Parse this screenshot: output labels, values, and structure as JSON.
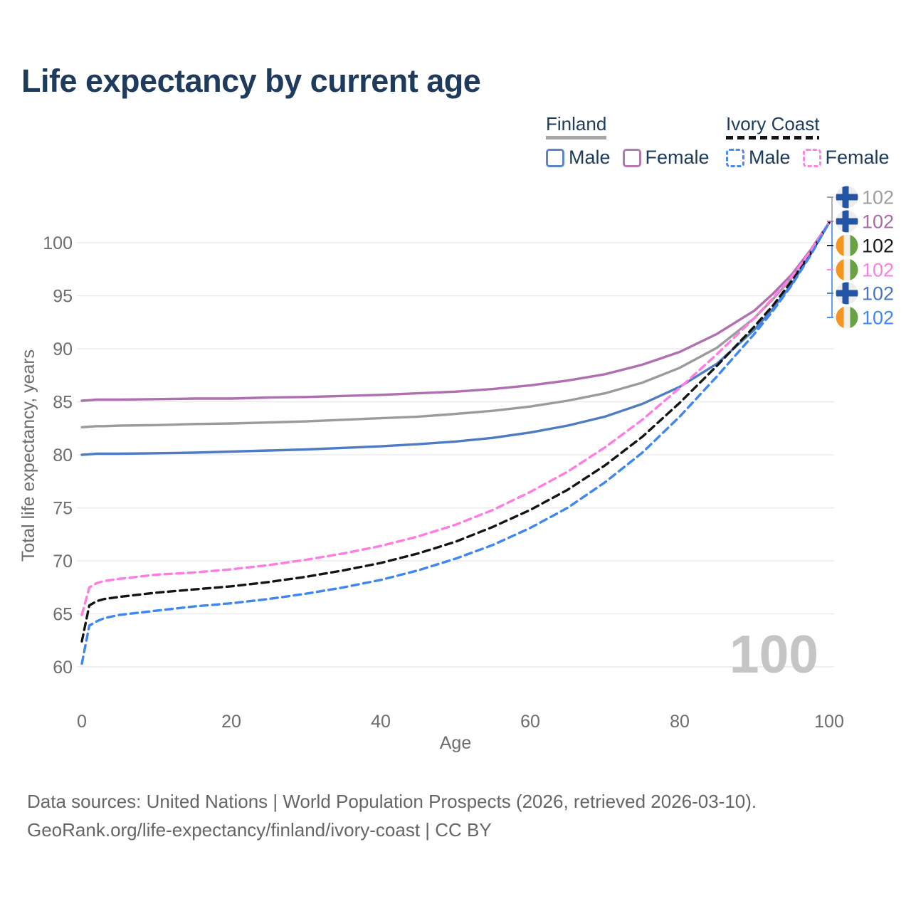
{
  "title": "Life expectancy by current age",
  "watermark": "100",
  "legend": {
    "groups": [
      {
        "label": "Finland",
        "underline": {
          "style": "solid",
          "color": "#a6a6a6"
        },
        "items": [
          {
            "label": "Male",
            "color": "#5b87c8",
            "dashed": false
          },
          {
            "label": "Female",
            "color": "#b379b3",
            "dashed": false
          }
        ]
      },
      {
        "label": "Ivory Coast",
        "underline": {
          "style": "dashed",
          "color": "#141414"
        },
        "items": [
          {
            "label": "Male",
            "color": "#4b89f0",
            "dashed": true
          },
          {
            "label": "Female",
            "color": "#ff85e4",
            "dashed": true
          }
        ]
      }
    ]
  },
  "footer": {
    "line1": "Data sources: United Nations | World Population Prospects (2026, retrieved 2026-03-10).",
    "line2": "GeoRank.org/life-expectancy/finland/ivory-coast | CC BY"
  },
  "chart_data": {
    "type": "line",
    "title": "Life expectancy by current age",
    "xlabel": "Age",
    "ylabel": "Total life expectancy, years",
    "x_ticks": [
      0,
      20,
      40,
      60,
      80,
      100
    ],
    "y_ticks": [
      60,
      65,
      70,
      75,
      80,
      85,
      90,
      95,
      100
    ],
    "xlim": [
      0,
      100
    ],
    "ylim": [
      58,
      103
    ],
    "grid": "horizontal",
    "legend_position": "top-right",
    "ages": [
      0,
      1,
      2,
      3,
      5,
      10,
      15,
      20,
      25,
      30,
      35,
      40,
      45,
      50,
      55,
      60,
      65,
      70,
      75,
      80,
      85,
      90,
      92.5,
      95,
      97.5,
      100
    ],
    "series": [
      {
        "id": "finland-total",
        "name": "Finland — Both sexes",
        "country": "Finland",
        "group": "total",
        "color": "#9b9b9b",
        "dashed": false,
        "flag": "finland",
        "row": 0,
        "end_label": "102",
        "label_color": "#9e9e9e",
        "values": [
          82.6,
          82.65,
          82.7,
          82.7,
          82.75,
          82.8,
          82.9,
          82.95,
          83.05,
          83.15,
          83.3,
          83.45,
          83.6,
          83.85,
          84.15,
          84.55,
          85.1,
          85.8,
          86.8,
          88.2,
          90.1,
          92.9,
          94.7,
          96.7,
          99.2,
          101.9
        ]
      },
      {
        "id": "finland-female",
        "name": "Finland — Female",
        "country": "Finland",
        "group": "female",
        "color": "#b06fb0",
        "dashed": false,
        "flag": "finland",
        "row": 1,
        "end_label": "102",
        "label_color": "#a76ca7",
        "values": [
          85.1,
          85.15,
          85.2,
          85.2,
          85.2,
          85.25,
          85.3,
          85.3,
          85.4,
          85.45,
          85.55,
          85.65,
          85.8,
          85.95,
          86.2,
          86.55,
          87.0,
          87.6,
          88.5,
          89.7,
          91.4,
          93.6,
          95.2,
          97.0,
          99.3,
          101.9
        ]
      },
      {
        "id": "finland-male",
        "name": "Finland — Male",
        "country": "Finland",
        "group": "male",
        "color": "#4d7cc4",
        "dashed": false,
        "flag": "finland",
        "row": 4,
        "end_label": "102",
        "label_color": "#4677c0",
        "values": [
          80.0,
          80.05,
          80.1,
          80.1,
          80.1,
          80.15,
          80.2,
          80.3,
          80.4,
          80.5,
          80.65,
          80.8,
          81.0,
          81.25,
          81.6,
          82.1,
          82.75,
          83.6,
          84.8,
          86.4,
          88.6,
          91.8,
          93.8,
          96.1,
          98.9,
          101.9
        ]
      },
      {
        "id": "ivorycoast-total",
        "name": "Ivory Coast — Both sexes",
        "country": "Ivory Coast",
        "group": "total",
        "color": "#141414",
        "dashed": true,
        "flag": "ivorycoast",
        "row": 2,
        "end_label": "102",
        "label_color": "#1a1a1a",
        "values": [
          62.4,
          65.8,
          66.2,
          66.4,
          66.6,
          67.0,
          67.3,
          67.6,
          68.0,
          68.5,
          69.1,
          69.8,
          70.7,
          71.8,
          73.2,
          74.8,
          76.7,
          79.0,
          81.7,
          84.9,
          88.4,
          92.1,
          94.1,
          96.4,
          99.0,
          101.9
        ]
      },
      {
        "id": "ivorycoast-female",
        "name": "Ivory Coast — Female",
        "country": "Ivory Coast",
        "group": "female",
        "color": "#ff7ce3",
        "dashed": true,
        "flag": "ivorycoast",
        "row": 3,
        "end_label": "102",
        "label_color": "#ff7ce3",
        "values": [
          64.9,
          67.5,
          67.9,
          68.1,
          68.3,
          68.7,
          68.9,
          69.2,
          69.6,
          70.1,
          70.7,
          71.4,
          72.3,
          73.4,
          74.8,
          76.5,
          78.4,
          80.7,
          83.3,
          86.3,
          89.5,
          92.9,
          94.8,
          96.8,
          99.2,
          101.9
        ]
      },
      {
        "id": "ivorycoast-male",
        "name": "Ivory Coast — Male",
        "country": "Ivory Coast",
        "group": "male",
        "color": "#3e86f2",
        "dashed": true,
        "flag": "ivorycoast",
        "row": 5,
        "end_label": "102",
        "label_color": "#3e86f2",
        "values": [
          60.3,
          63.9,
          64.3,
          64.6,
          64.9,
          65.3,
          65.7,
          66.0,
          66.4,
          66.9,
          67.5,
          68.2,
          69.1,
          70.2,
          71.5,
          73.1,
          75.0,
          77.4,
          80.2,
          83.6,
          87.4,
          91.4,
          93.6,
          96.0,
          98.8,
          101.9
        ]
      }
    ],
    "flag_colors": {
      "finland": {
        "background": "#ededed",
        "cross": "#2355a4"
      },
      "ivorycoast": {
        "left": "#f5951f",
        "middle": "#f2f0ea",
        "right": "#68a245"
      }
    }
  }
}
